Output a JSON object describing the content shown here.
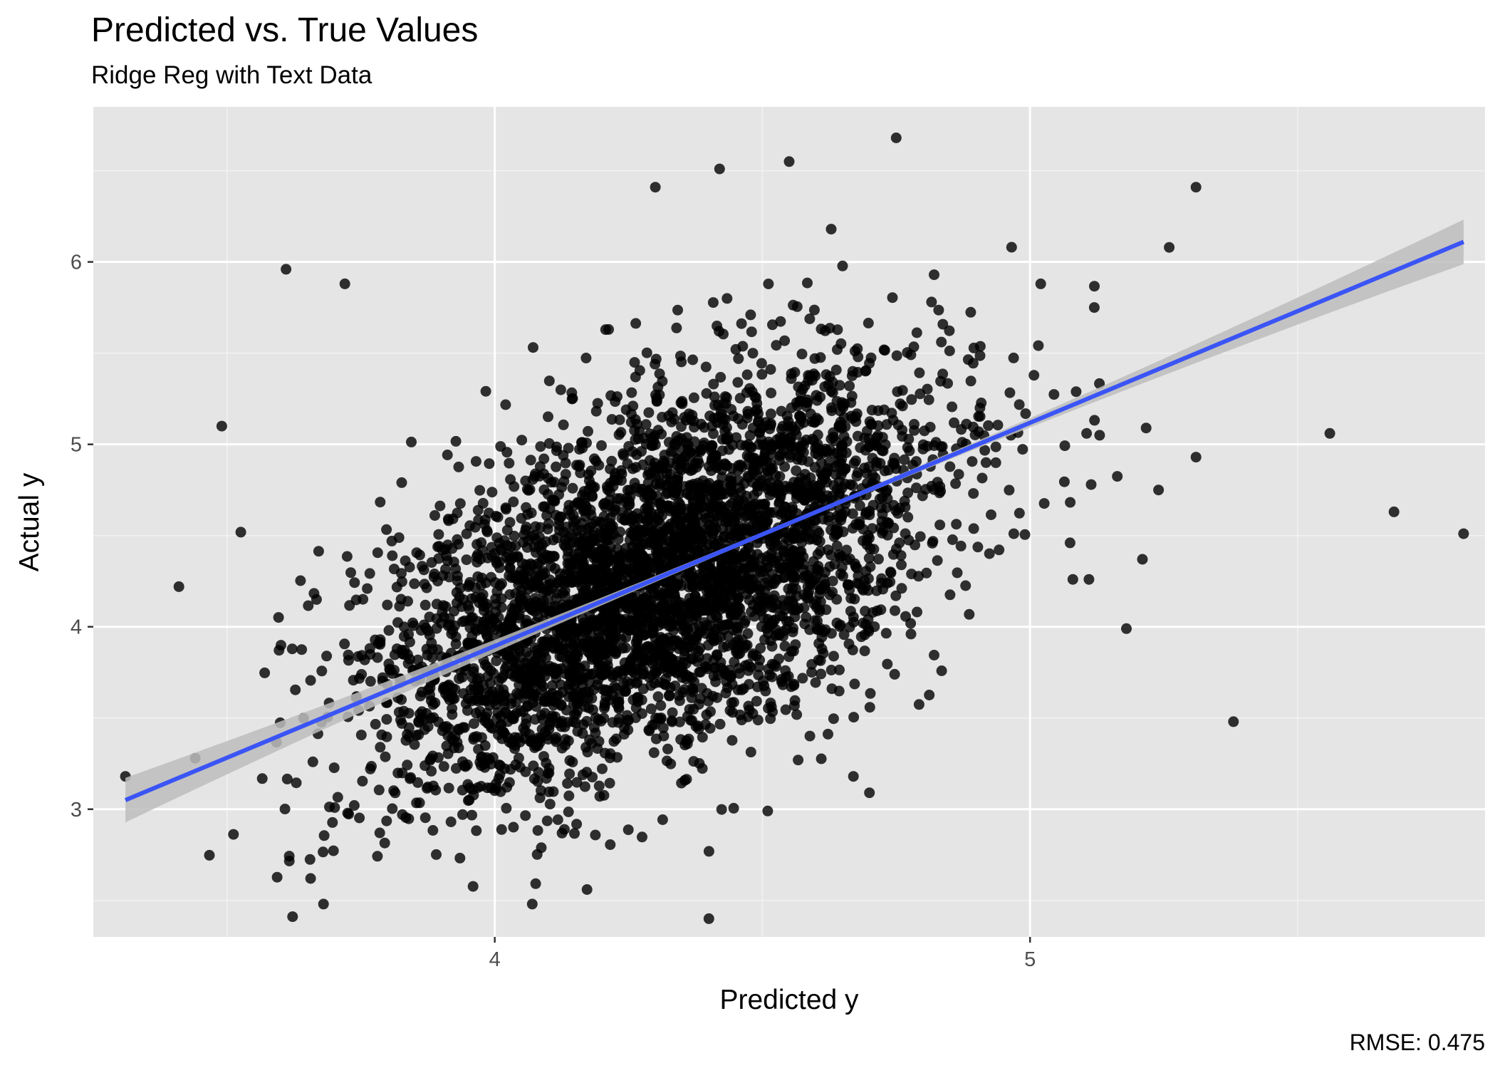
{
  "chart_data": {
    "type": "scatter",
    "title": "Predicted vs. True Values",
    "subtitle": "Ridge Reg with Text Data",
    "xlabel": "Predicted y",
    "ylabel": "Actual y",
    "caption": "RMSE: 0.475",
    "xlim": [
      3.25,
      5.85
    ],
    "ylim": [
      2.3,
      6.85
    ],
    "x_ticks": [
      4,
      5
    ],
    "x_tick_labels": [
      "4",
      "5"
    ],
    "x_minor_ticks": [
      3.5,
      4.5,
      5.5
    ],
    "y_ticks": [
      3,
      4,
      5,
      6
    ],
    "y_tick_labels": [
      "3",
      "4",
      "5",
      "6"
    ],
    "y_minor_ticks": [
      2.5,
      3.5,
      4.5,
      5.5,
      6.5
    ],
    "grid": true,
    "legend": "none",
    "panel_background": "#e5e5e5",
    "point_color": "#000000",
    "fit_line": {
      "method": "linear",
      "color": "#3a54f5",
      "band_color": "#bdbdbd",
      "x": [
        3.31,
        5.81
      ],
      "y": [
        3.05,
        6.11
      ]
    },
    "highlighted_points": [
      {
        "x": 5.31,
        "y": 6.41
      },
      {
        "x": 5.26,
        "y": 6.08
      },
      {
        "x": 5.56,
        "y": 5.06
      },
      {
        "x": 5.68,
        "y": 4.63
      },
      {
        "x": 5.81,
        "y": 4.51
      },
      {
        "x": 5.18,
        "y": 3.99
      },
      {
        "x": 5.24,
        "y": 4.75
      },
      {
        "x": 5.31,
        "y": 4.93
      },
      {
        "x": 5.12,
        "y": 5.75
      },
      {
        "x": 5.02,
        "y": 5.88
      },
      {
        "x": 4.75,
        "y": 6.68
      },
      {
        "x": 4.55,
        "y": 6.55
      },
      {
        "x": 4.42,
        "y": 6.51
      },
      {
        "x": 4.3,
        "y": 6.41
      },
      {
        "x": 3.61,
        "y": 5.96
      },
      {
        "x": 3.72,
        "y": 5.88
      },
      {
        "x": 3.49,
        "y": 5.1
      },
      {
        "x": 3.31,
        "y": 3.18
      },
      {
        "x": 3.41,
        "y": 4.22
      },
      {
        "x": 3.68,
        "y": 2.48
      },
      {
        "x": 4.07,
        "y": 2.48
      },
      {
        "x": 4.4,
        "y": 2.4
      },
      {
        "x": 4.51,
        "y": 2.99
      },
      {
        "x": 4.67,
        "y": 3.18
      },
      {
        "x": 4.7,
        "y": 3.09
      },
      {
        "x": 5.38,
        "y": 3.48
      },
      {
        "x": 5.08,
        "y": 4.26
      },
      {
        "x": 5.11,
        "y": 4.26
      },
      {
        "x": 5.21,
        "y": 4.37
      },
      {
        "x": 5.13,
        "y": 5.05
      }
    ]
  }
}
